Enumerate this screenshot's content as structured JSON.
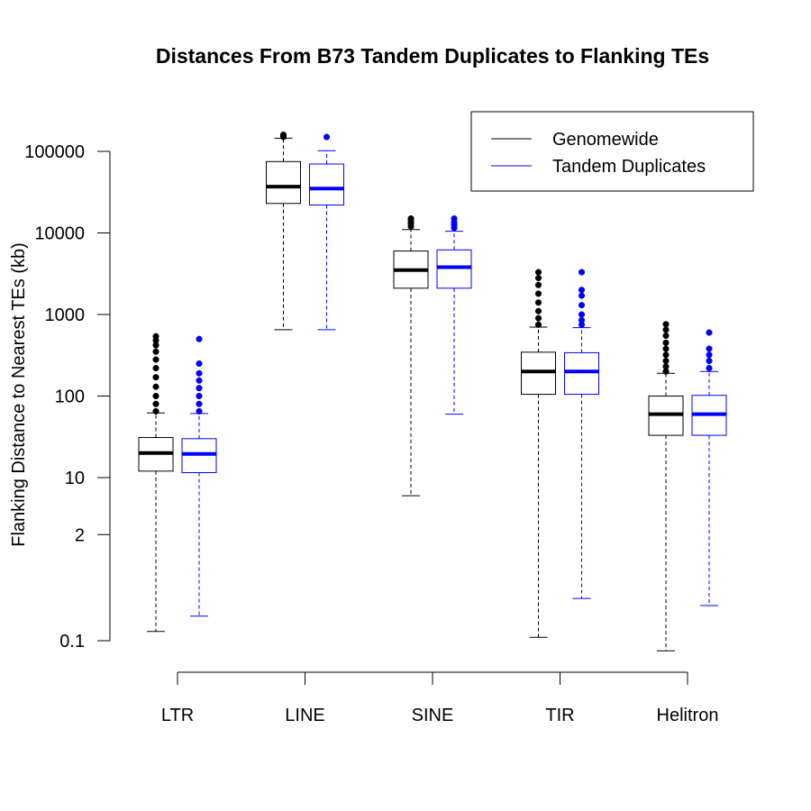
{
  "chart_data": {
    "type": "boxplot",
    "title": "Distances From B73 Tandem Duplicates to Flanking TEs",
    "xlabel": "",
    "ylabel": "Flanking Distance to Nearest TEs (kb)",
    "y_scale": "log",
    "ylim": [
      0.1,
      100000
    ],
    "y_ticks": [
      0.1,
      2,
      10,
      100,
      1000,
      10000,
      100000
    ],
    "y_tick_labels": [
      "0.1",
      "2",
      "10",
      "100",
      "1000",
      "10000",
      "100000"
    ],
    "categories": [
      "LTR",
      "LINE",
      "SINE",
      "TIR",
      "Helitron"
    ],
    "legend": {
      "position": "top-right"
    },
    "series": [
      {
        "name": "Genomewide",
        "color": "#000000",
        "boxes": [
          {
            "min": 0.13,
            "q1": 12,
            "median": 20,
            "q3": 31,
            "max": 62,
            "outliers": [
              65,
              80,
              100,
              130,
              170,
              220,
              280,
              350,
              420,
              480,
              540
            ]
          },
          {
            "min": 650,
            "q1": 23000,
            "median": 37000,
            "q3": 75000,
            "max": 145000,
            "outliers": [
              150000,
              155000,
              160000
            ]
          },
          {
            "min": 6,
            "q1": 2100,
            "median": 3500,
            "q3": 6000,
            "max": 11000,
            "outliers": [
              12000,
              13000,
              14000,
              15000
            ]
          },
          {
            "min": 0.11,
            "q1": 105,
            "median": 200,
            "q3": 345,
            "max": 700,
            "outliers": [
              750,
              900,
              1100,
              1400,
              1800,
              2300,
              2800,
              3300
            ]
          },
          {
            "min": 0.075,
            "q1": 33,
            "median": 60,
            "q3": 100,
            "max": 190,
            "outliers": [
              200,
              230,
              270,
              320,
              380,
              450,
              550,
              650,
              760
            ]
          }
        ]
      },
      {
        "name": "Tandem Duplicates",
        "color": "#0000ff",
        "boxes": [
          {
            "min": 0.2,
            "q1": 11.5,
            "median": 19.5,
            "q3": 30,
            "max": 61,
            "outliers": [
              65,
              80,
              100,
              125,
              155,
              190,
              250,
              500
            ]
          },
          {
            "min": 650,
            "q1": 22000,
            "median": 35000,
            "q3": 70000,
            "max": 102000,
            "outliers": [
              150000
            ]
          },
          {
            "min": 60,
            "q1": 2100,
            "median": 3800,
            "q3": 6200,
            "max": 10500,
            "outliers": [
              11500,
              12500,
              13500,
              15000
            ]
          },
          {
            "min": 0.33,
            "q1": 105,
            "median": 200,
            "q3": 340,
            "max": 690,
            "outliers": [
              750,
              850,
              1000,
              1300,
              1700,
              2000,
              3300
            ]
          },
          {
            "min": 0.27,
            "q1": 33,
            "median": 60,
            "q3": 102,
            "max": 200,
            "outliers": [
              220,
              270,
              320,
              380,
              600
            ]
          }
        ]
      }
    ]
  }
}
